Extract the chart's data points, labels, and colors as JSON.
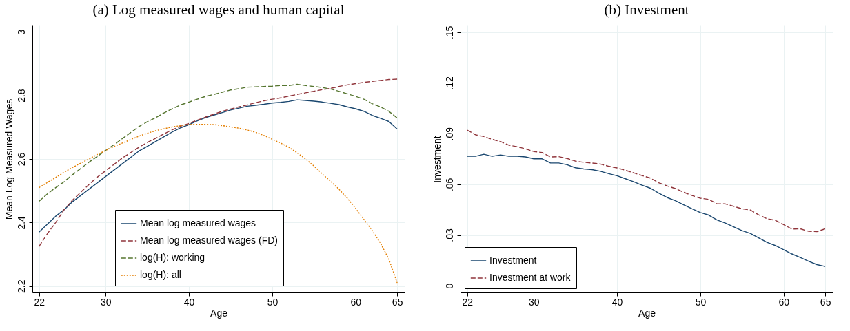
{
  "chart_data": [
    {
      "type": "line",
      "title": "(a)  Log measured wages and human capital",
      "xlabel": "Age",
      "ylabel": "Mean Log Measured Wages",
      "x": [
        22,
        23,
        24,
        25,
        26,
        27,
        28,
        29,
        30,
        31,
        32,
        33,
        34,
        35,
        36,
        37,
        38,
        39,
        40,
        41,
        42,
        43,
        44,
        45,
        46,
        47,
        48,
        49,
        50,
        51,
        52,
        53,
        54,
        55,
        56,
        57,
        58,
        59,
        60,
        61,
        62,
        63,
        64,
        65
      ],
      "xlim": [
        21.2,
        65.9
      ],
      "xticks": [
        22,
        30,
        40,
        50,
        60,
        65
      ],
      "ylim": [
        2.18,
        3.02
      ],
      "yticks": [
        2.2,
        2.4,
        2.6,
        2.8,
        3
      ],
      "grid": true,
      "legend": "bottom",
      "series": [
        {
          "name": "Mean log measured wages",
          "color": "#1a476f",
          "line_style": "solid",
          "values": [
            2.37,
            2.395,
            2.42,
            2.44,
            2.465,
            2.485,
            2.505,
            2.525,
            2.545,
            2.565,
            2.585,
            2.605,
            2.625,
            2.64,
            2.655,
            2.67,
            2.685,
            2.698,
            2.708,
            2.72,
            2.73,
            2.738,
            2.746,
            2.754,
            2.76,
            2.766,
            2.769,
            2.772,
            2.776,
            2.778,
            2.781,
            2.786,
            2.784,
            2.782,
            2.779,
            2.775,
            2.771,
            2.764,
            2.758,
            2.75,
            2.737,
            2.728,
            2.718,
            2.694
          ]
        },
        {
          "name": "Mean log measured wages (FD)",
          "color": "#90353b",
          "line_style": "dashed",
          "values": [
            2.325,
            2.365,
            2.4,
            2.44,
            2.47,
            2.495,
            2.52,
            2.543,
            2.563,
            2.583,
            2.603,
            2.62,
            2.637,
            2.652,
            2.665,
            2.679,
            2.692,
            2.703,
            2.712,
            2.722,
            2.732,
            2.741,
            2.75,
            2.757,
            2.764,
            2.77,
            2.777,
            2.783,
            2.788,
            2.792,
            2.798,
            2.803,
            2.808,
            2.813,
            2.818,
            2.822,
            2.828,
            2.833,
            2.837,
            2.841,
            2.844,
            2.847,
            2.85,
            2.851
          ]
        },
        {
          "name": "log(H): working",
          "color": "#55752f",
          "line_style": "dashed",
          "values": [
            2.467,
            2.49,
            2.51,
            2.528,
            2.55,
            2.57,
            2.59,
            2.608,
            2.627,
            2.645,
            2.664,
            2.683,
            2.702,
            2.717,
            2.73,
            2.745,
            2.758,
            2.77,
            2.779,
            2.788,
            2.797,
            2.803,
            2.81,
            2.817,
            2.821,
            2.826,
            2.827,
            2.828,
            2.829,
            2.831,
            2.831,
            2.835,
            2.831,
            2.828,
            2.825,
            2.82,
            2.813,
            2.805,
            2.797,
            2.788,
            2.774,
            2.764,
            2.75,
            2.729
          ]
        },
        {
          "name": "log(H): all",
          "color": "#e37e00",
          "line_style": "dotted",
          "values": [
            2.51,
            2.526,
            2.542,
            2.558,
            2.573,
            2.587,
            2.6,
            2.614,
            2.627,
            2.639,
            2.65,
            2.661,
            2.672,
            2.681,
            2.689,
            2.695,
            2.701,
            2.705,
            2.708,
            2.709,
            2.709,
            2.708,
            2.705,
            2.701,
            2.697,
            2.691,
            2.684,
            2.674,
            2.662,
            2.65,
            2.637,
            2.619,
            2.6,
            2.578,
            2.553,
            2.53,
            2.505,
            2.477,
            2.445,
            2.41,
            2.375,
            2.335,
            2.285,
            2.21
          ]
        }
      ]
    },
    {
      "type": "line",
      "title": "(b)  Investment",
      "xlabel": "Age",
      "ylabel": "Investment",
      "x": [
        22,
        23,
        24,
        25,
        26,
        27,
        28,
        29,
        30,
        31,
        32,
        33,
        34,
        35,
        36,
        37,
        38,
        39,
        40,
        41,
        42,
        43,
        44,
        45,
        46,
        47,
        48,
        49,
        50,
        51,
        52,
        53,
        54,
        55,
        56,
        57,
        58,
        59,
        60,
        61,
        62,
        63,
        64,
        65
      ],
      "xlim": [
        21.2,
        65.9
      ],
      "xticks": [
        22,
        30,
        40,
        50,
        60,
        65
      ],
      "ylim": [
        -0.004,
        0.154
      ],
      "yticks": [
        {
          "value": 0,
          "label": "0"
        },
        {
          "value": 0.03,
          "label": ".03"
        },
        {
          "value": 0.06,
          "label": ".06"
        },
        {
          "value": 0.09,
          "label": ".09"
        },
        {
          "value": 0.12,
          "label": ".12"
        },
        {
          "value": 0.15,
          "label": ".15"
        }
      ],
      "grid": true,
      "legend": "bottom left",
      "series": [
        {
          "name": "Investment",
          "color": "#1a476f",
          "line_style": "solid",
          "values": [
            0.0766,
            0.0766,
            0.0778,
            0.0766,
            0.0774,
            0.0766,
            0.0766,
            0.0762,
            0.0751,
            0.0751,
            0.0726,
            0.0726,
            0.0716,
            0.0698,
            0.0691,
            0.0687,
            0.0677,
            0.0663,
            0.0651,
            0.0633,
            0.0615,
            0.0595,
            0.0577,
            0.0548,
            0.0522,
            0.0503,
            0.0479,
            0.0455,
            0.0433,
            0.0418,
            0.0389,
            0.0371,
            0.0348,
            0.0326,
            0.031,
            0.0283,
            0.0257,
            0.0238,
            0.0213,
            0.0188,
            0.0167,
            0.0145,
            0.0125,
            0.0114
          ]
        },
        {
          "name": "Investment at work",
          "color": "#90353b",
          "line_style": "dashed",
          "values": [
            0.0921,
            0.0893,
            0.0883,
            0.0866,
            0.0853,
            0.0832,
            0.0823,
            0.081,
            0.0794,
            0.0788,
            0.0762,
            0.0764,
            0.0753,
            0.0737,
            0.073,
            0.0726,
            0.072,
            0.0707,
            0.0697,
            0.0683,
            0.0668,
            0.0652,
            0.0637,
            0.0609,
            0.0591,
            0.0575,
            0.0553,
            0.0534,
            0.0518,
            0.0511,
            0.0485,
            0.0484,
            0.047,
            0.0455,
            0.0448,
            0.042,
            0.0396,
            0.0387,
            0.0362,
            0.0335,
            0.0337,
            0.0322,
            0.032,
            0.0337
          ]
        }
      ]
    }
  ]
}
